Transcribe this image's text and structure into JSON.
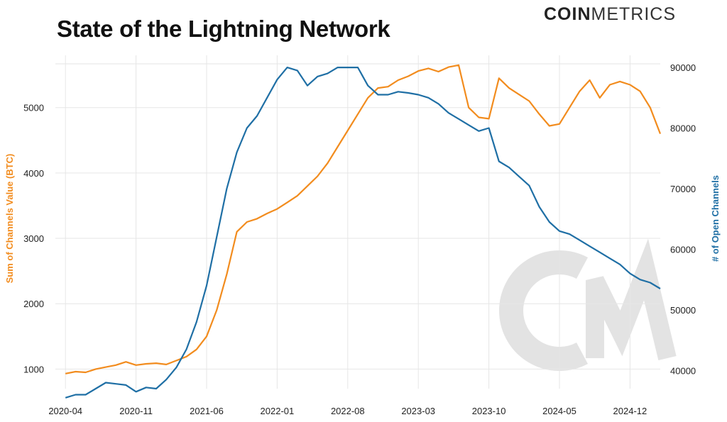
{
  "header": {
    "title": "State of the Lightning Network",
    "brand_bold": "COIN",
    "brand_light": "METRICS"
  },
  "colors": {
    "left_series": "#f28c1e",
    "right_series": "#1f6fa5",
    "grid": "#e6e6e6",
    "watermark": "#e3e3e3"
  },
  "chart_data": {
    "type": "line",
    "title": "State of the Lightning Network",
    "x_tick_labels": [
      "2020-04",
      "2020-11",
      "2021-06",
      "2022-01",
      "2022-08",
      "2023-03",
      "2023-10",
      "2024-05",
      "2024-12"
    ],
    "xlim": [
      "2020-03",
      "2025-03"
    ],
    "grid": true,
    "y_left": {
      "label": "Sum of Channels Value (BTC)",
      "ticks": [
        1000,
        2000,
        3000,
        4000,
        5000
      ],
      "lim": [
        700,
        5800
      ]
    },
    "y_right": {
      "label": "# of Open Channels",
      "ticks": [
        40000,
        50000,
        60000,
        70000,
        80000,
        90000
      ],
      "lim": [
        37000,
        92000
      ]
    },
    "series": [
      {
        "name": "Sum of Channels Value (BTC)",
        "axis": "left",
        "points": [
          [
            "2020-04",
            930
          ],
          [
            "2020-05",
            960
          ],
          [
            "2020-06",
            950
          ],
          [
            "2020-07",
            1000
          ],
          [
            "2020-08",
            1030
          ],
          [
            "2020-09",
            1060
          ],
          [
            "2020-10",
            1110
          ],
          [
            "2020-11",
            1060
          ],
          [
            "2020-12",
            1080
          ],
          [
            "2021-01",
            1090
          ],
          [
            "2021-02",
            1070
          ],
          [
            "2021-03",
            1130
          ],
          [
            "2021-04",
            1190
          ],
          [
            "2021-05",
            1300
          ],
          [
            "2021-06",
            1500
          ],
          [
            "2021-07",
            1900
          ],
          [
            "2021-08",
            2450
          ],
          [
            "2021-09",
            3100
          ],
          [
            "2021-10",
            3250
          ],
          [
            "2021-11",
            3300
          ],
          [
            "2021-12",
            3380
          ],
          [
            "2022-01",
            3450
          ],
          [
            "2022-02",
            3550
          ],
          [
            "2022-03",
            3650
          ],
          [
            "2022-04",
            3800
          ],
          [
            "2022-05",
            3950
          ],
          [
            "2022-06",
            4150
          ],
          [
            "2022-07",
            4400
          ],
          [
            "2022-08",
            4650
          ],
          [
            "2022-09",
            4900
          ],
          [
            "2022-10",
            5150
          ],
          [
            "2022-11",
            5300
          ],
          [
            "2022-12",
            5320
          ],
          [
            "2023-01",
            5420
          ],
          [
            "2023-02",
            5480
          ],
          [
            "2023-03",
            5560
          ],
          [
            "2023-04",
            5600
          ],
          [
            "2023-05",
            5550
          ],
          [
            "2023-06",
            5620
          ],
          [
            "2023-07",
            5650
          ],
          [
            "2023-08",
            5000
          ],
          [
            "2023-09",
            4850
          ],
          [
            "2023-10",
            4830
          ],
          [
            "2023-11",
            5450
          ],
          [
            "2023-12",
            5300
          ],
          [
            "2024-01",
            5200
          ],
          [
            "2024-02",
            5100
          ],
          [
            "2024-03",
            4900
          ],
          [
            "2024-04",
            4720
          ],
          [
            "2024-05",
            4750
          ],
          [
            "2024-06",
            5000
          ],
          [
            "2024-07",
            5250
          ],
          [
            "2024-08",
            5420
          ],
          [
            "2024-09",
            5150
          ],
          [
            "2024-10",
            5350
          ],
          [
            "2024-11",
            5400
          ],
          [
            "2024-12",
            5350
          ],
          [
            "2025-01",
            5250
          ],
          [
            "2025-02",
            5000
          ],
          [
            "2025-03",
            4600
          ]
        ]
      },
      {
        "name": "# of Open Channels",
        "axis": "right",
        "points": [
          [
            "2020-04",
            35500
          ],
          [
            "2020-05",
            36000
          ],
          [
            "2020-06",
            36000
          ],
          [
            "2020-07",
            37000
          ],
          [
            "2020-08",
            38000
          ],
          [
            "2020-09",
            37800
          ],
          [
            "2020-10",
            37600
          ],
          [
            "2020-11",
            36500
          ],
          [
            "2020-12",
            37200
          ],
          [
            "2021-01",
            37000
          ],
          [
            "2021-02",
            38500
          ],
          [
            "2021-03",
            40500
          ],
          [
            "2021-04",
            43500
          ],
          [
            "2021-05",
            48000
          ],
          [
            "2021-06",
            54000
          ],
          [
            "2021-07",
            62000
          ],
          [
            "2021-08",
            70000
          ],
          [
            "2021-09",
            76000
          ],
          [
            "2021-10",
            80000
          ],
          [
            "2021-11",
            82000
          ],
          [
            "2021-12",
            85000
          ],
          [
            "2022-01",
            88000
          ],
          [
            "2022-02",
            90000
          ],
          [
            "2022-03",
            89500
          ],
          [
            "2022-04",
            87000
          ],
          [
            "2022-05",
            88500
          ],
          [
            "2022-06",
            89000
          ],
          [
            "2022-07",
            90000
          ],
          [
            "2022-08",
            90000
          ],
          [
            "2022-09",
            90000
          ],
          [
            "2022-10",
            87000
          ],
          [
            "2022-11",
            85500
          ],
          [
            "2022-12",
            85500
          ],
          [
            "2023-01",
            86000
          ],
          [
            "2023-02",
            85800
          ],
          [
            "2023-03",
            85500
          ],
          [
            "2023-04",
            85000
          ],
          [
            "2023-05",
            84000
          ],
          [
            "2023-06",
            82500
          ],
          [
            "2023-07",
            81500
          ],
          [
            "2023-08",
            80500
          ],
          [
            "2023-09",
            79500
          ],
          [
            "2023-10",
            80000
          ],
          [
            "2023-11",
            74500
          ],
          [
            "2023-12",
            73500
          ],
          [
            "2024-01",
            72000
          ],
          [
            "2024-02",
            70500
          ],
          [
            "2024-03",
            67000
          ],
          [
            "2024-04",
            64500
          ],
          [
            "2024-05",
            63000
          ],
          [
            "2024-06",
            62500
          ],
          [
            "2024-07",
            61500
          ],
          [
            "2024-08",
            60500
          ],
          [
            "2024-09",
            59500
          ],
          [
            "2024-10",
            58500
          ],
          [
            "2024-11",
            57500
          ],
          [
            "2024-12",
            56000
          ],
          [
            "2025-01",
            55000
          ],
          [
            "2025-02",
            54500
          ],
          [
            "2025-03",
            53500
          ]
        ]
      }
    ]
  }
}
